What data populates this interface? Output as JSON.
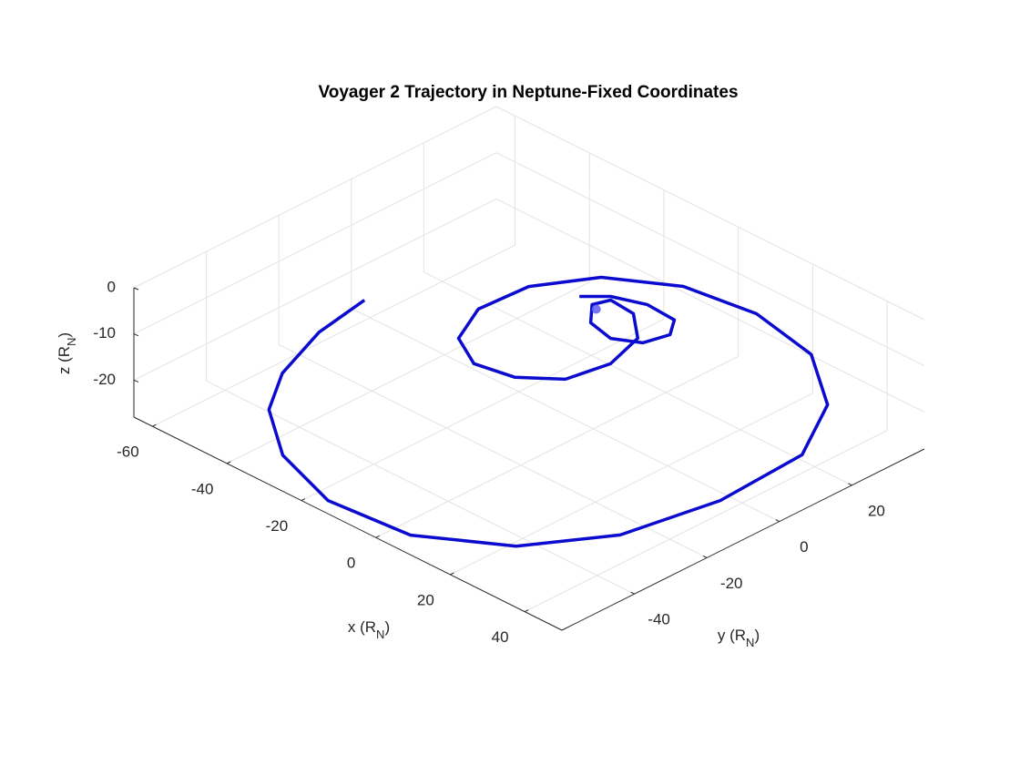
{
  "chart_data": {
    "type": "line",
    "title": "Voyager 2 Trajectory in Neptune-Fixed Coordinates",
    "xlabel": [
      "x (R",
      "N",
      ")"
    ],
    "ylabel": [
      "y (R",
      "N",
      ")"
    ],
    "zlabel": [
      "z (R",
      "N",
      ")"
    ],
    "xlim": [
      -65,
      50
    ],
    "ylim": [
      -60,
      40
    ],
    "zlim": [
      -28,
      0
    ],
    "xticks": [
      -60,
      -40,
      -20,
      0,
      20,
      40
    ],
    "yticks": [
      -40,
      -20,
      0,
      20
    ],
    "zticks": [
      -20,
      -10,
      0
    ],
    "grid": true,
    "series": [
      {
        "color": "#0b0bd0",
        "x": [
          -53.0,
          -50.5,
          -44.4,
          -36.4,
          -32.2,
          -13.9,
          6.5,
          23.7,
          34.7,
          38.9,
          37.6,
          35.0,
          26.7,
          8.4,
          -8.8,
          -22.3,
          -29.6,
          -30.3,
          -25.1,
          -16.2,
          -7.0,
          0.3,
          2.2,
          -1.0,
          -8.2,
          -14.9,
          -16.2,
          -11.5,
          -4.6,
          0.9,
          2.4,
          -1.0,
          -8.8,
          -15.9,
          -20.1
        ],
        "y": [
          -8.7,
          -23.8,
          -40.2,
          -52.1,
          -52.6,
          -58.9,
          -57.1,
          -45.6,
          -28.2,
          -4.9,
          19.0,
          28.7,
          32.7,
          36.4,
          33.9,
          25.1,
          12.6,
          -0.6,
          -11.4,
          -16.3,
          -14.4,
          -8.0,
          2.5,
          13.3,
          19.5,
          20.1,
          16.3,
          11.1,
          9.5,
          12.7,
          18.7,
          23.4,
          23.9,
          21.1,
          16.8
        ],
        "z": [
          -18,
          -18,
          -18,
          -18,
          -26,
          -26,
          -26,
          -26,
          -26,
          -26,
          -26,
          -20,
          -14,
          -14,
          -14,
          -14,
          -14,
          -14,
          -14,
          -14,
          -14,
          -14,
          -14,
          -14,
          -14,
          -14,
          -14,
          -14,
          -14,
          -14,
          -14,
          -14,
          -14,
          -14,
          -14
        ]
      }
    ],
    "marker": {
      "color": "#5c5cf2",
      "x": -14.4,
      "y": 15.6,
      "z": -14
    }
  }
}
